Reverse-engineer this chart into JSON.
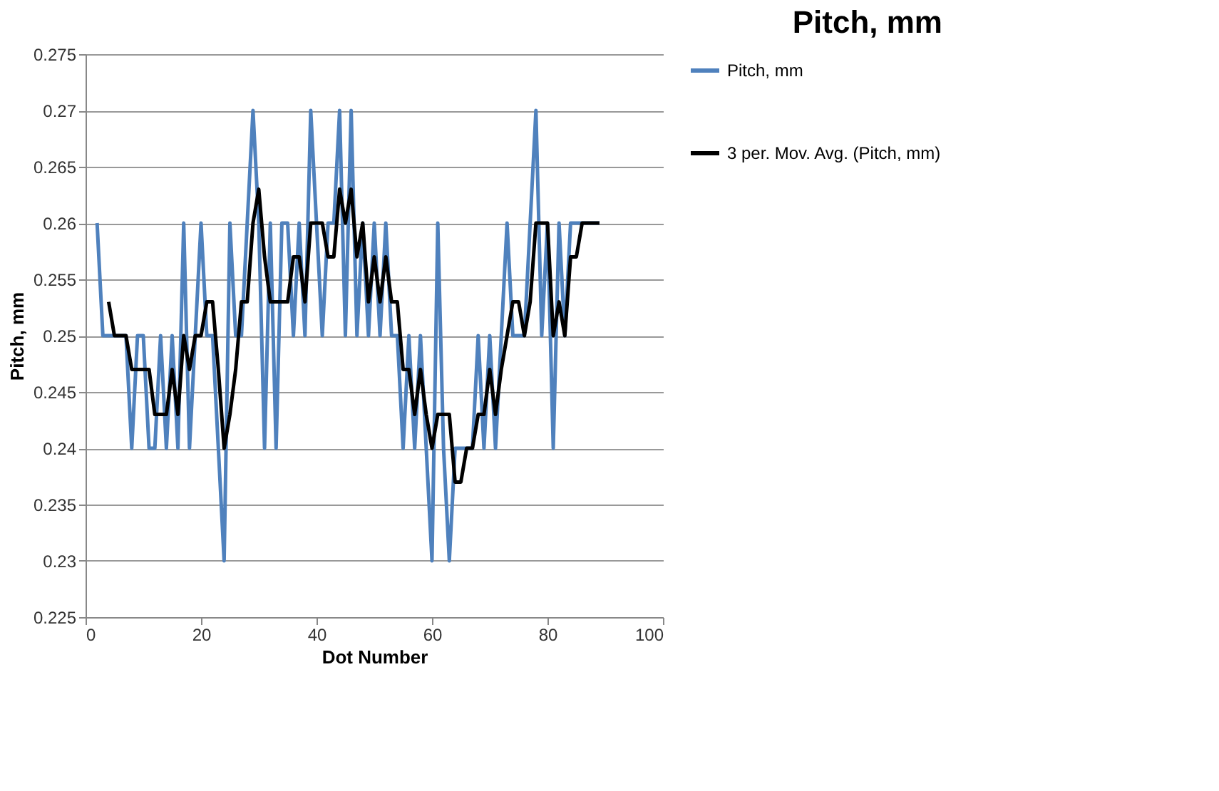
{
  "chart_data": {
    "type": "line",
    "title": "Pitch, mm",
    "xlabel": "Dot Number",
    "ylabel": "Pitch, mm",
    "xlim": [
      0,
      100
    ],
    "xticks": [
      0,
      20,
      40,
      60,
      80,
      100
    ],
    "ylim": [
      0.225,
      0.275
    ],
    "yticks": [
      0.225,
      0.23,
      0.235,
      0.24,
      0.245,
      0.25,
      0.255,
      0.26,
      0.265,
      0.27,
      0.275
    ],
    "grid": "y",
    "legend": "right",
    "marker": "none",
    "line_style": "solid",
    "series": [
      {
        "name": "Pitch, mm",
        "color": "#4f81bd",
        "x": [
          2,
          3,
          4,
          5,
          6,
          7,
          8,
          9,
          10,
          11,
          12,
          13,
          14,
          15,
          16,
          17,
          18,
          19,
          20,
          21,
          22,
          23,
          24,
          25,
          26,
          27,
          28,
          29,
          30,
          31,
          32,
          33,
          34,
          35,
          36,
          37,
          38,
          39,
          40,
          41,
          42,
          43,
          44,
          45,
          46,
          47,
          48,
          49,
          50,
          51,
          52,
          53,
          54,
          55,
          56,
          57,
          58,
          59,
          60,
          61,
          62,
          63,
          64,
          65,
          66,
          67,
          68,
          69,
          70,
          71,
          72,
          73,
          74,
          75,
          76,
          77,
          78,
          79,
          80,
          81,
          82,
          83,
          84,
          85,
          86,
          87,
          88,
          89
        ],
        "values": [
          0.26,
          0.25,
          0.25,
          0.25,
          0.25,
          0.25,
          0.24,
          0.25,
          0.25,
          0.24,
          0.24,
          0.25,
          0.24,
          0.25,
          0.24,
          0.26,
          0.24,
          0.25,
          0.26,
          0.25,
          0.25,
          0.24,
          0.23,
          0.26,
          0.25,
          0.25,
          0.26,
          0.27,
          0.26,
          0.24,
          0.26,
          0.24,
          0.26,
          0.26,
          0.25,
          0.26,
          0.25,
          0.27,
          0.26,
          0.25,
          0.26,
          0.26,
          0.27,
          0.25,
          0.27,
          0.25,
          0.26,
          0.25,
          0.26,
          0.25,
          0.26,
          0.25,
          0.25,
          0.24,
          0.25,
          0.24,
          0.25,
          0.24,
          0.23,
          0.26,
          0.24,
          0.23,
          0.24,
          0.24,
          0.24,
          0.24,
          0.25,
          0.24,
          0.25,
          0.24,
          0.25,
          0.26,
          0.25,
          0.25,
          0.25,
          0.26,
          0.27,
          0.25,
          0.26,
          0.24,
          0.26,
          0.25,
          0.26,
          0.26,
          0.26,
          0.26,
          0.26,
          0.26
        ]
      },
      {
        "name": "3 per. Mov. Avg. (Pitch, mm)",
        "color": "#000000",
        "x": [
          4,
          5,
          6,
          7,
          8,
          9,
          10,
          11,
          12,
          13,
          14,
          15,
          16,
          17,
          18,
          19,
          20,
          21,
          22,
          23,
          24,
          25,
          26,
          27,
          28,
          29,
          30,
          31,
          32,
          33,
          34,
          35,
          36,
          37,
          38,
          39,
          40,
          41,
          42,
          43,
          44,
          45,
          46,
          47,
          48,
          49,
          50,
          51,
          52,
          53,
          54,
          55,
          56,
          57,
          58,
          59,
          60,
          61,
          62,
          63,
          64,
          65,
          66,
          67,
          68,
          69,
          70,
          71,
          72,
          73,
          74,
          75,
          76,
          77,
          78,
          79,
          80,
          81,
          82,
          83,
          84,
          85,
          86,
          87,
          88,
          89
        ],
        "values": [
          0.253,
          0.25,
          0.25,
          0.25,
          0.247,
          0.247,
          0.247,
          0.247,
          0.243,
          0.243,
          0.243,
          0.247,
          0.243,
          0.25,
          0.247,
          0.25,
          0.25,
          0.253,
          0.253,
          0.247,
          0.24,
          0.243,
          0.247,
          0.253,
          0.253,
          0.26,
          0.263,
          0.257,
          0.253,
          0.253,
          0.253,
          0.253,
          0.257,
          0.257,
          0.253,
          0.26,
          0.26,
          0.26,
          0.257,
          0.257,
          0.263,
          0.26,
          0.263,
          0.257,
          0.26,
          0.253,
          0.257,
          0.253,
          0.257,
          0.253,
          0.253,
          0.247,
          0.247,
          0.243,
          0.247,
          0.243,
          0.24,
          0.243,
          0.243,
          0.243,
          0.237,
          0.237,
          0.24,
          0.24,
          0.243,
          0.243,
          0.247,
          0.243,
          0.247,
          0.25,
          0.253,
          0.253,
          0.25,
          0.253,
          0.26,
          0.26,
          0.26,
          0.25,
          0.253,
          0.25,
          0.257,
          0.257,
          0.26,
          0.26,
          0.26,
          0.26
        ]
      }
    ]
  }
}
